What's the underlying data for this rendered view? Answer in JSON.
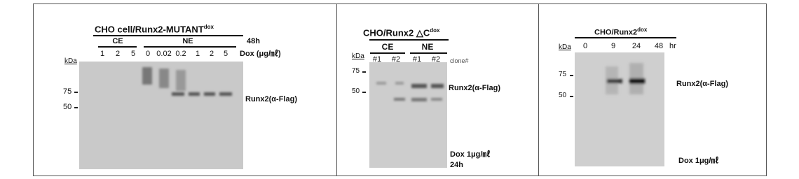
{
  "panels": [
    {
      "title": "CHO cell/Runx2-MUTANT",
      "title_sup": "dox",
      "groups": [
        "CE",
        "NE"
      ],
      "time": "48h",
      "lanes": [
        "1",
        "2",
        "5",
        "0",
        "0.02",
        "0.2",
        "1",
        "2",
        "5"
      ],
      "dose_label": "Dox (μg/㎖)",
      "unit": "kDa",
      "markers": [
        "75",
        "50"
      ],
      "band_label": "Runx2(α-Flag)"
    },
    {
      "title": "CHO/Runx2 △C",
      "title_sup": "dox",
      "unit": "kDa",
      "groups": [
        "CE",
        "NE"
      ],
      "lanes": [
        "#1",
        "#2",
        "#1",
        "#2"
      ],
      "lane_note": "clone#",
      "markers": [
        "75",
        "50"
      ],
      "band_label": "Runx2(α-Flag)",
      "treatment": "Dox 1μg/㎖",
      "time": "24h"
    },
    {
      "title": "CHO/Runx2",
      "title_sup": "dox",
      "unit": "kDa",
      "lanes": [
        "0",
        "9",
        "24",
        "48"
      ],
      "lane_unit": "hr",
      "markers": [
        "75",
        "50"
      ],
      "band_label": "Runx2(α-Flag)",
      "treatment": "Dox 1μg/㎖"
    }
  ]
}
